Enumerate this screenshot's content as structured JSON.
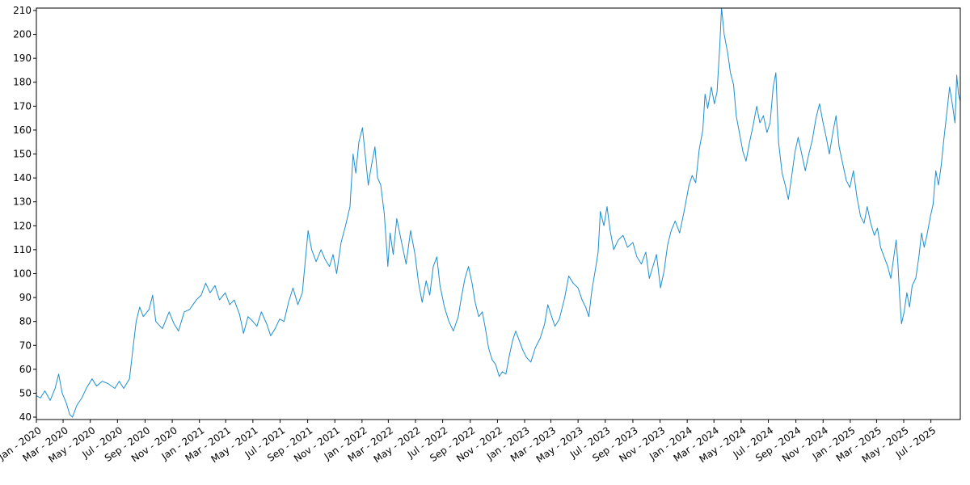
{
  "chart_data": {
    "type": "line",
    "title": "",
    "xlabel": "",
    "ylabel": "",
    "ylim": [
      39,
      211
    ],
    "xlim": [
      "2020-01-01",
      "2025-09-05"
    ],
    "grid": false,
    "legend": "none",
    "y_ticks": [
      40,
      50,
      60,
      70,
      80,
      90,
      100,
      110,
      120,
      130,
      140,
      150,
      160,
      170,
      180,
      190,
      200,
      210
    ],
    "x_ticks": [
      {
        "date": "2020-01-01",
        "label": "Jan - 2020"
      },
      {
        "date": "2020-03-01",
        "label": "Mar - 2020"
      },
      {
        "date": "2020-05-01",
        "label": "May - 2020"
      },
      {
        "date": "2020-07-01",
        "label": "Jul - 2020"
      },
      {
        "date": "2020-09-01",
        "label": "Sep - 2020"
      },
      {
        "date": "2020-11-01",
        "label": "Nov - 2020"
      },
      {
        "date": "2021-01-01",
        "label": "Jan - 2021"
      },
      {
        "date": "2021-03-01",
        "label": "Mar - 2021"
      },
      {
        "date": "2021-05-01",
        "label": "May - 2021"
      },
      {
        "date": "2021-07-01",
        "label": "Jul - 2021"
      },
      {
        "date": "2021-09-01",
        "label": "Sep - 2021"
      },
      {
        "date": "2021-11-01",
        "label": "Nov - 2021"
      },
      {
        "date": "2022-01-01",
        "label": "Jan - 2022"
      },
      {
        "date": "2022-03-01",
        "label": "Mar - 2022"
      },
      {
        "date": "2022-05-01",
        "label": "May - 2022"
      },
      {
        "date": "2022-07-01",
        "label": "Jul - 2022"
      },
      {
        "date": "2022-09-01",
        "label": "Sep - 2022"
      },
      {
        "date": "2022-11-01",
        "label": "Nov - 2022"
      },
      {
        "date": "2023-01-01",
        "label": "Jan - 2023"
      },
      {
        "date": "2023-03-01",
        "label": "Mar - 2023"
      },
      {
        "date": "2023-05-01",
        "label": "May - 2023"
      },
      {
        "date": "2023-07-01",
        "label": "Jul - 2023"
      },
      {
        "date": "2023-09-01",
        "label": "Sep - 2023"
      },
      {
        "date": "2023-11-01",
        "label": "Nov - 2023"
      },
      {
        "date": "2024-01-01",
        "label": "Jan - 2024"
      },
      {
        "date": "2024-03-01",
        "label": "Mar - 2024"
      },
      {
        "date": "2024-05-01",
        "label": "May - 2024"
      },
      {
        "date": "2024-07-01",
        "label": "Jul - 2024"
      },
      {
        "date": "2024-09-01",
        "label": "Sep - 2024"
      },
      {
        "date": "2024-11-01",
        "label": "Nov - 2024"
      },
      {
        "date": "2025-01-01",
        "label": "Jan - 2025"
      },
      {
        "date": "2025-03-01",
        "label": "Mar - 2025"
      },
      {
        "date": "2025-05-01",
        "label": "May - 2025"
      },
      {
        "date": "2025-07-01",
        "label": "Jul - 2025"
      }
    ],
    "series": [
      {
        "color": "#1f8fcf",
        "points": [
          [
            "2020-01-01",
            49
          ],
          [
            "2020-01-10",
            48
          ],
          [
            "2020-01-20",
            51
          ],
          [
            "2020-02-01",
            47
          ],
          [
            "2020-02-12",
            52
          ],
          [
            "2020-02-20",
            58
          ],
          [
            "2020-02-28",
            50
          ],
          [
            "2020-03-08",
            46
          ],
          [
            "2020-03-16",
            41
          ],
          [
            "2020-03-22",
            40
          ],
          [
            "2020-04-01",
            45
          ],
          [
            "2020-04-12",
            48
          ],
          [
            "2020-04-22",
            52
          ],
          [
            "2020-05-05",
            56
          ],
          [
            "2020-05-15",
            53
          ],
          [
            "2020-05-28",
            55
          ],
          [
            "2020-06-10",
            54
          ],
          [
            "2020-06-25",
            52
          ],
          [
            "2020-07-05",
            55
          ],
          [
            "2020-07-15",
            52
          ],
          [
            "2020-07-28",
            56
          ],
          [
            "2020-08-05",
            69
          ],
          [
            "2020-08-12",
            80
          ],
          [
            "2020-08-20",
            86
          ],
          [
            "2020-08-28",
            82
          ],
          [
            "2020-09-10",
            85
          ],
          [
            "2020-09-18",
            91
          ],
          [
            "2020-09-25",
            80
          ],
          [
            "2020-10-10",
            77
          ],
          [
            "2020-10-25",
            84
          ],
          [
            "2020-11-05",
            79
          ],
          [
            "2020-11-15",
            76
          ],
          [
            "2020-11-28",
            84
          ],
          [
            "2020-12-10",
            85
          ],
          [
            "2020-12-25",
            89
          ],
          [
            "2021-01-05",
            91
          ],
          [
            "2021-01-15",
            96
          ],
          [
            "2021-01-25",
            92
          ],
          [
            "2021-02-05",
            95
          ],
          [
            "2021-02-15",
            89
          ],
          [
            "2021-02-28",
            92
          ],
          [
            "2021-03-10",
            87
          ],
          [
            "2021-03-20",
            89
          ],
          [
            "2021-04-01",
            83
          ],
          [
            "2021-04-10",
            75
          ],
          [
            "2021-04-20",
            82
          ],
          [
            "2021-05-01",
            80
          ],
          [
            "2021-05-10",
            78
          ],
          [
            "2021-05-20",
            84
          ],
          [
            "2021-06-01",
            79
          ],
          [
            "2021-06-10",
            74
          ],
          [
            "2021-06-20",
            77
          ],
          [
            "2021-06-30",
            81
          ],
          [
            "2021-07-10",
            80
          ],
          [
            "2021-07-20",
            88
          ],
          [
            "2021-07-30",
            94
          ],
          [
            "2021-08-10",
            87
          ],
          [
            "2021-08-20",
            92
          ],
          [
            "2021-08-28",
            108
          ],
          [
            "2021-09-02",
            118
          ],
          [
            "2021-09-10",
            110
          ],
          [
            "2021-09-20",
            105
          ],
          [
            "2021-10-01",
            110
          ],
          [
            "2021-10-10",
            106
          ],
          [
            "2021-10-20",
            103
          ],
          [
            "2021-10-28",
            108
          ],
          [
            "2021-11-05",
            100
          ],
          [
            "2021-11-15",
            113
          ],
          [
            "2021-11-25",
            120
          ],
          [
            "2021-12-05",
            128
          ],
          [
            "2021-12-12",
            150
          ],
          [
            "2021-12-18",
            142
          ],
          [
            "2021-12-25",
            155
          ],
          [
            "2022-01-02",
            161
          ],
          [
            "2022-01-08",
            150
          ],
          [
            "2022-01-15",
            137
          ],
          [
            "2022-01-22",
            145
          ],
          [
            "2022-01-30",
            153
          ],
          [
            "2022-02-05",
            140
          ],
          [
            "2022-02-12",
            137
          ],
          [
            "2022-02-20",
            125
          ],
          [
            "2022-02-28",
            103
          ],
          [
            "2022-03-05",
            117
          ],
          [
            "2022-03-12",
            108
          ],
          [
            "2022-03-20",
            123
          ],
          [
            "2022-04-01",
            112
          ],
          [
            "2022-04-10",
            104
          ],
          [
            "2022-04-20",
            118
          ],
          [
            "2022-04-30",
            108
          ],
          [
            "2022-05-08",
            96
          ],
          [
            "2022-05-16",
            88
          ],
          [
            "2022-05-25",
            97
          ],
          [
            "2022-06-02",
            91
          ],
          [
            "2022-06-10",
            103
          ],
          [
            "2022-06-18",
            107
          ],
          [
            "2022-06-25",
            95
          ],
          [
            "2022-07-05",
            86
          ],
          [
            "2022-07-15",
            80
          ],
          [
            "2022-07-25",
            76
          ],
          [
            "2022-08-05",
            82
          ],
          [
            "2022-08-12",
            90
          ],
          [
            "2022-08-20",
            98
          ],
          [
            "2022-08-28",
            103
          ],
          [
            "2022-09-05",
            96
          ],
          [
            "2022-09-12",
            88
          ],
          [
            "2022-09-20",
            82
          ],
          [
            "2022-09-28",
            84
          ],
          [
            "2022-10-05",
            77
          ],
          [
            "2022-10-12",
            69
          ],
          [
            "2022-10-20",
            64
          ],
          [
            "2022-10-28",
            62
          ],
          [
            "2022-11-05",
            57
          ],
          [
            "2022-11-12",
            59
          ],
          [
            "2022-11-20",
            58
          ],
          [
            "2022-11-28",
            66
          ],
          [
            "2022-12-05",
            72
          ],
          [
            "2022-12-12",
            76
          ],
          [
            "2022-12-20",
            72
          ],
          [
            "2022-12-28",
            68
          ],
          [
            "2023-01-05",
            65
          ],
          [
            "2023-01-15",
            63
          ],
          [
            "2023-01-25",
            69
          ],
          [
            "2023-02-05",
            73
          ],
          [
            "2023-02-15",
            79
          ],
          [
            "2023-02-22",
            87
          ],
          [
            "2023-03-01",
            83
          ],
          [
            "2023-03-10",
            78
          ],
          [
            "2023-03-20",
            81
          ],
          [
            "2023-04-01",
            90
          ],
          [
            "2023-04-10",
            99
          ],
          [
            "2023-04-20",
            96
          ],
          [
            "2023-05-01",
            94
          ],
          [
            "2023-05-10",
            89
          ],
          [
            "2023-05-18",
            86
          ],
          [
            "2023-05-25",
            82
          ],
          [
            "2023-06-01",
            93
          ],
          [
            "2023-06-10",
            103
          ],
          [
            "2023-06-15",
            109
          ],
          [
            "2023-06-20",
            126
          ],
          [
            "2023-06-28",
            120
          ],
          [
            "2023-07-05",
            128
          ],
          [
            "2023-07-12",
            118
          ],
          [
            "2023-07-20",
            110
          ],
          [
            "2023-07-30",
            114
          ],
          [
            "2023-08-10",
            116
          ],
          [
            "2023-08-20",
            111
          ],
          [
            "2023-09-01",
            113
          ],
          [
            "2023-09-10",
            107
          ],
          [
            "2023-09-20",
            104
          ],
          [
            "2023-09-30",
            109
          ],
          [
            "2023-10-08",
            98
          ],
          [
            "2023-10-16",
            103
          ],
          [
            "2023-10-24",
            108
          ],
          [
            "2023-11-02",
            94
          ],
          [
            "2023-11-10",
            101
          ],
          [
            "2023-11-18",
            112
          ],
          [
            "2023-11-26",
            118
          ],
          [
            "2023-12-05",
            122
          ],
          [
            "2023-12-15",
            117
          ],
          [
            "2023-12-25",
            126
          ],
          [
            "2024-01-05",
            137
          ],
          [
            "2024-01-12",
            141
          ],
          [
            "2024-01-20",
            138
          ],
          [
            "2024-01-28",
            152
          ],
          [
            "2024-02-05",
            160
          ],
          [
            "2024-02-10",
            175
          ],
          [
            "2024-02-16",
            169
          ],
          [
            "2024-02-24",
            178
          ],
          [
            "2024-03-02",
            171
          ],
          [
            "2024-03-08",
            176
          ],
          [
            "2024-03-14",
            195
          ],
          [
            "2024-03-18",
            211
          ],
          [
            "2024-03-24",
            200
          ],
          [
            "2024-04-01",
            192
          ],
          [
            "2024-04-07",
            184
          ],
          [
            "2024-04-14",
            179
          ],
          [
            "2024-04-20",
            166
          ],
          [
            "2024-04-28",
            158
          ],
          [
            "2024-05-05",
            151
          ],
          [
            "2024-05-12",
            147
          ],
          [
            "2024-05-20",
            155
          ],
          [
            "2024-05-28",
            162
          ],
          [
            "2024-06-05",
            170
          ],
          [
            "2024-06-12",
            163
          ],
          [
            "2024-06-20",
            166
          ],
          [
            "2024-06-28",
            159
          ],
          [
            "2024-07-05",
            163
          ],
          [
            "2024-07-12",
            178
          ],
          [
            "2024-07-18",
            184
          ],
          [
            "2024-07-24",
            155
          ],
          [
            "2024-08-01",
            142
          ],
          [
            "2024-08-08",
            137
          ],
          [
            "2024-08-15",
            131
          ],
          [
            "2024-08-22",
            140
          ],
          [
            "2024-08-30",
            151
          ],
          [
            "2024-09-06",
            157
          ],
          [
            "2024-09-14",
            150
          ],
          [
            "2024-09-22",
            143
          ],
          [
            "2024-09-30",
            150
          ],
          [
            "2024-10-08",
            156
          ],
          [
            "2024-10-16",
            165
          ],
          [
            "2024-10-24",
            171
          ],
          [
            "2024-11-01",
            163
          ],
          [
            "2024-11-08",
            157
          ],
          [
            "2024-11-15",
            150
          ],
          [
            "2024-11-22",
            158
          ],
          [
            "2024-11-30",
            166
          ],
          [
            "2024-12-07",
            153
          ],
          [
            "2024-12-15",
            146
          ],
          [
            "2024-12-23",
            139
          ],
          [
            "2024-12-31",
            136
          ],
          [
            "2025-01-08",
            143
          ],
          [
            "2025-01-16",
            132
          ],
          [
            "2025-01-24",
            124
          ],
          [
            "2025-02-01",
            121
          ],
          [
            "2025-02-08",
            128
          ],
          [
            "2025-02-16",
            121
          ],
          [
            "2025-02-24",
            116
          ],
          [
            "2025-03-03",
            119
          ],
          [
            "2025-03-10",
            111
          ],
          [
            "2025-03-18",
            107
          ],
          [
            "2025-03-26",
            103
          ],
          [
            "2025-04-02",
            98
          ],
          [
            "2025-04-08",
            106
          ],
          [
            "2025-04-14",
            114
          ],
          [
            "2025-04-18",
            104
          ],
          [
            "2025-04-22",
            90
          ],
          [
            "2025-04-26",
            79
          ],
          [
            "2025-05-02",
            84
          ],
          [
            "2025-05-08",
            92
          ],
          [
            "2025-05-14",
            86
          ],
          [
            "2025-05-20",
            95
          ],
          [
            "2025-05-28",
            98
          ],
          [
            "2025-06-04",
            107
          ],
          [
            "2025-06-10",
            117
          ],
          [
            "2025-06-16",
            111
          ],
          [
            "2025-06-22",
            116
          ],
          [
            "2025-06-30",
            124
          ],
          [
            "2025-07-06",
            129
          ],
          [
            "2025-07-12",
            143
          ],
          [
            "2025-07-18",
            137
          ],
          [
            "2025-07-24",
            145
          ],
          [
            "2025-07-30",
            156
          ],
          [
            "2025-08-05",
            166
          ],
          [
            "2025-08-12",
            178
          ],
          [
            "2025-08-18",
            171
          ],
          [
            "2025-08-24",
            163
          ],
          [
            "2025-08-28",
            183
          ],
          [
            "2025-09-01",
            175
          ],
          [
            "2025-09-05",
            172
          ]
        ]
      }
    ]
  }
}
